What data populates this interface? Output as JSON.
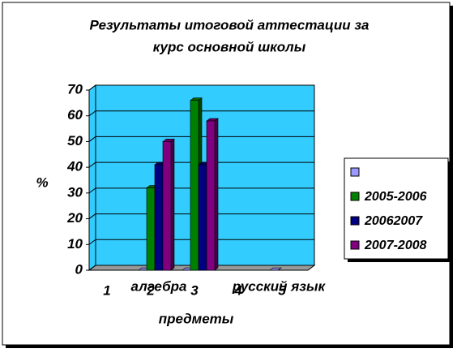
{
  "chart_data": {
    "type": "bar3d",
    "title": [
      "Результаты итоговой аттестации за",
      "курс основной школы"
    ],
    "y_label": "%",
    "x_label": "предметы",
    "annotations": [
      "алгебра",
      "русский язык"
    ],
    "categories": [
      "1",
      "2",
      "3",
      "4",
      "5"
    ],
    "series": [
      {
        "color": "#9999ff",
        "values": [
          null,
          0,
          0,
          null,
          0
        ]
      },
      {
        "name": "2005-2006",
        "color": "#008000",
        "values": [
          null,
          32,
          66,
          null,
          null
        ]
      },
      {
        "name": "20062007",
        "color": "#000080",
        "values": [
          null,
          41,
          41,
          null,
          null
        ]
      },
      {
        "name": "2007-2008",
        "color": "#800080",
        "values": [
          null,
          50,
          58,
          null,
          null
        ]
      }
    ],
    "ylim": [
      0,
      70
    ],
    "yticks": [
      0,
      10,
      20,
      30,
      40,
      50,
      60,
      70
    ],
    "grid": true,
    "wall_color": "#33ccff",
    "legend_position": "right"
  }
}
